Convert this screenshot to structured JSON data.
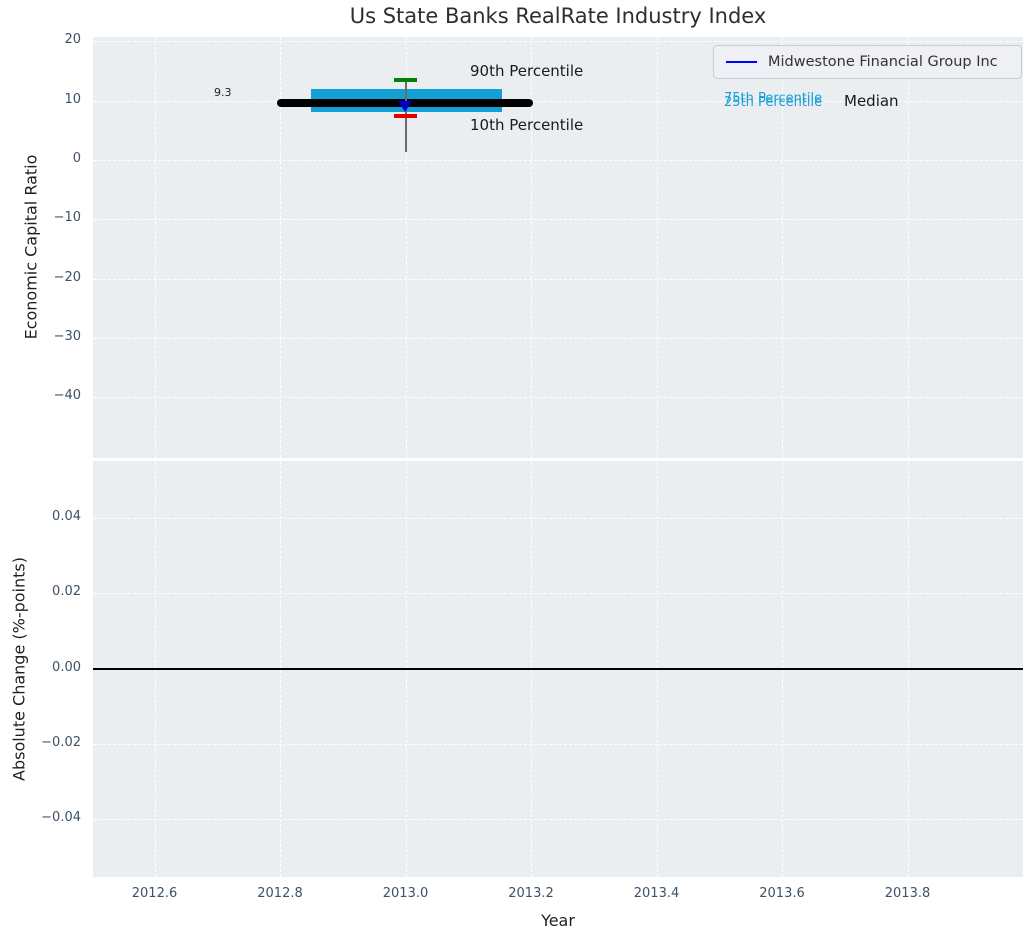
{
  "title": "Us State Banks RealRate Industry Index",
  "legend": {
    "series_label": "Midwestone Financial Group Inc",
    "line_color": "#0000ff"
  },
  "axes": {
    "top": {
      "ylabel": "Economic Capital Ratio",
      "yticks": [
        {
          "label": "20",
          "value": 20
        },
        {
          "label": "10",
          "value": 10
        },
        {
          "label": "0",
          "value": 0
        },
        {
          "label": "−10",
          "value": -10
        },
        {
          "label": "−20",
          "value": -20
        },
        {
          "label": "−30",
          "value": -30
        },
        {
          "label": "−40",
          "value": -40
        }
      ]
    },
    "bottom": {
      "ylabel": "Absolute Change (%-points)",
      "xlabel": "Year",
      "yticks": [
        {
          "label": "0.04",
          "value": 0.04
        },
        {
          "label": "0.02",
          "value": 0.02
        },
        {
          "label": "0.00",
          "value": 0.0
        },
        {
          "label": "−0.02",
          "value": -0.02
        },
        {
          "label": "−0.04",
          "value": -0.04
        }
      ],
      "xticks": [
        {
          "label": "2012.6",
          "value": 2012.6
        },
        {
          "label": "2012.8",
          "value": 2012.8
        },
        {
          "label": "2013.0",
          "value": 2013.0
        },
        {
          "label": "2013.2",
          "value": 2013.2
        },
        {
          "label": "2013.4",
          "value": 2013.4
        },
        {
          "label": "2013.6",
          "value": 2013.6
        },
        {
          "label": "2013.8",
          "value": 2013.8
        }
      ]
    }
  },
  "annotations": {
    "p90": "90th Percentile",
    "p10": "10th Percentile",
    "p75": "75th Percentile",
    "p25": "25th Percentile",
    "median": "Median",
    "value_label": "9.3"
  },
  "chart_data": [
    {
      "type": "box-errorbar",
      "title": "Us State Banks RealRate Industry Index",
      "xlabel": "Year",
      "ylabel": "Economic Capital Ratio",
      "xlim": [
        2012.5,
        2013.98
      ],
      "ylim": [
        -50,
        21
      ],
      "grid": true,
      "legend_position": "upper right",
      "xticks": [
        2012.6,
        2012.8,
        2013.0,
        2013.2,
        2013.4,
        2013.6,
        2013.8
      ],
      "yticks": [
        20,
        10,
        0,
        -10,
        -20,
        -30,
        -40
      ],
      "series": [
        {
          "name": "Midwestone Financial Group Inc",
          "x": 2013.0,
          "value": 9.3,
          "marker": "triangle-down",
          "color": "#0000ff"
        }
      ],
      "industry_distribution": {
        "x": 2013.0,
        "median": 9.3,
        "p25": 8.0,
        "p75": 11.8,
        "p10": 7.1,
        "p90": 13.3,
        "median_line_x_extent": [
          2012.8,
          2013.2
        ],
        "box_x_extent": [
          2012.85,
          2013.15
        ],
        "box_color": "#12a0d5",
        "median_color": "#000000",
        "p90_cap_color": "#008000",
        "p10_cap_color": "#e60000"
      },
      "annotations": [
        "9.3",
        "90th Percentile",
        "10th Percentile",
        "75th Percentile",
        "25th Percentile",
        "Median"
      ]
    },
    {
      "type": "line",
      "xlabel": "Year",
      "ylabel": "Absolute Change (%-points)",
      "xlim": [
        2012.5,
        2013.98
      ],
      "ylim": [
        -0.055,
        0.055
      ],
      "grid": true,
      "yticks": [
        0.04,
        0.02,
        0.0,
        -0.02,
        -0.04
      ],
      "xticks": [
        2012.6,
        2012.8,
        2013.0,
        2013.2,
        2013.4,
        2013.6,
        2013.8
      ],
      "zero_line_y": 0.0,
      "series": []
    }
  ]
}
